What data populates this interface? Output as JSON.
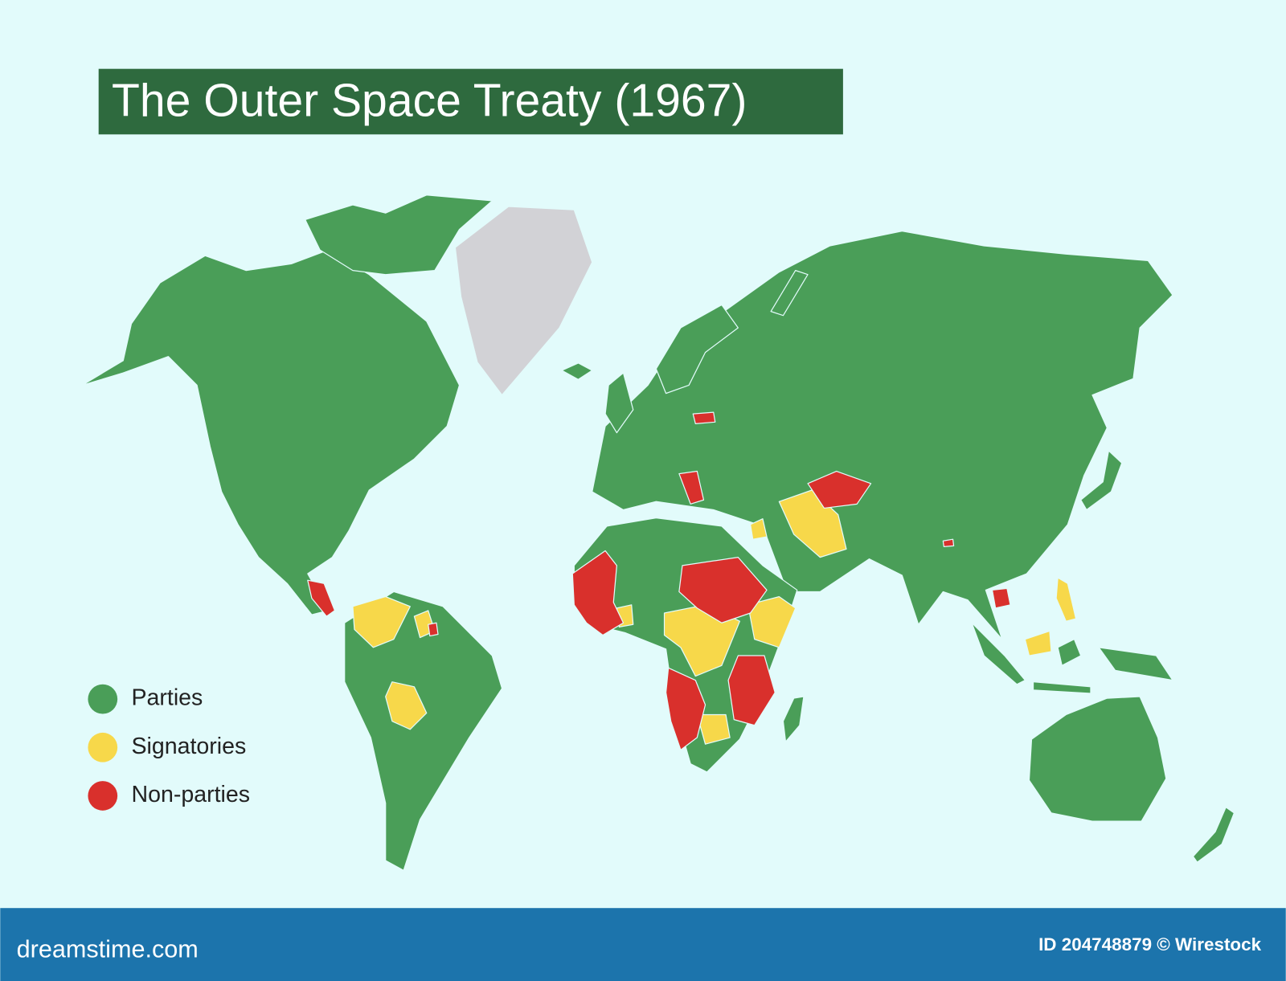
{
  "header": {
    "title": "The Outer Space Treaty (1967)"
  },
  "legend": {
    "items": [
      {
        "label": "Parties",
        "color": "#4a9e58"
      },
      {
        "label": "Signatories",
        "color": "#f7d84a"
      },
      {
        "label": "Non-parties",
        "color": "#d9302c"
      }
    ]
  },
  "footer": {
    "brand": "dreamstime.com",
    "credit": "ID 204748879 © Wirestock"
  }
}
